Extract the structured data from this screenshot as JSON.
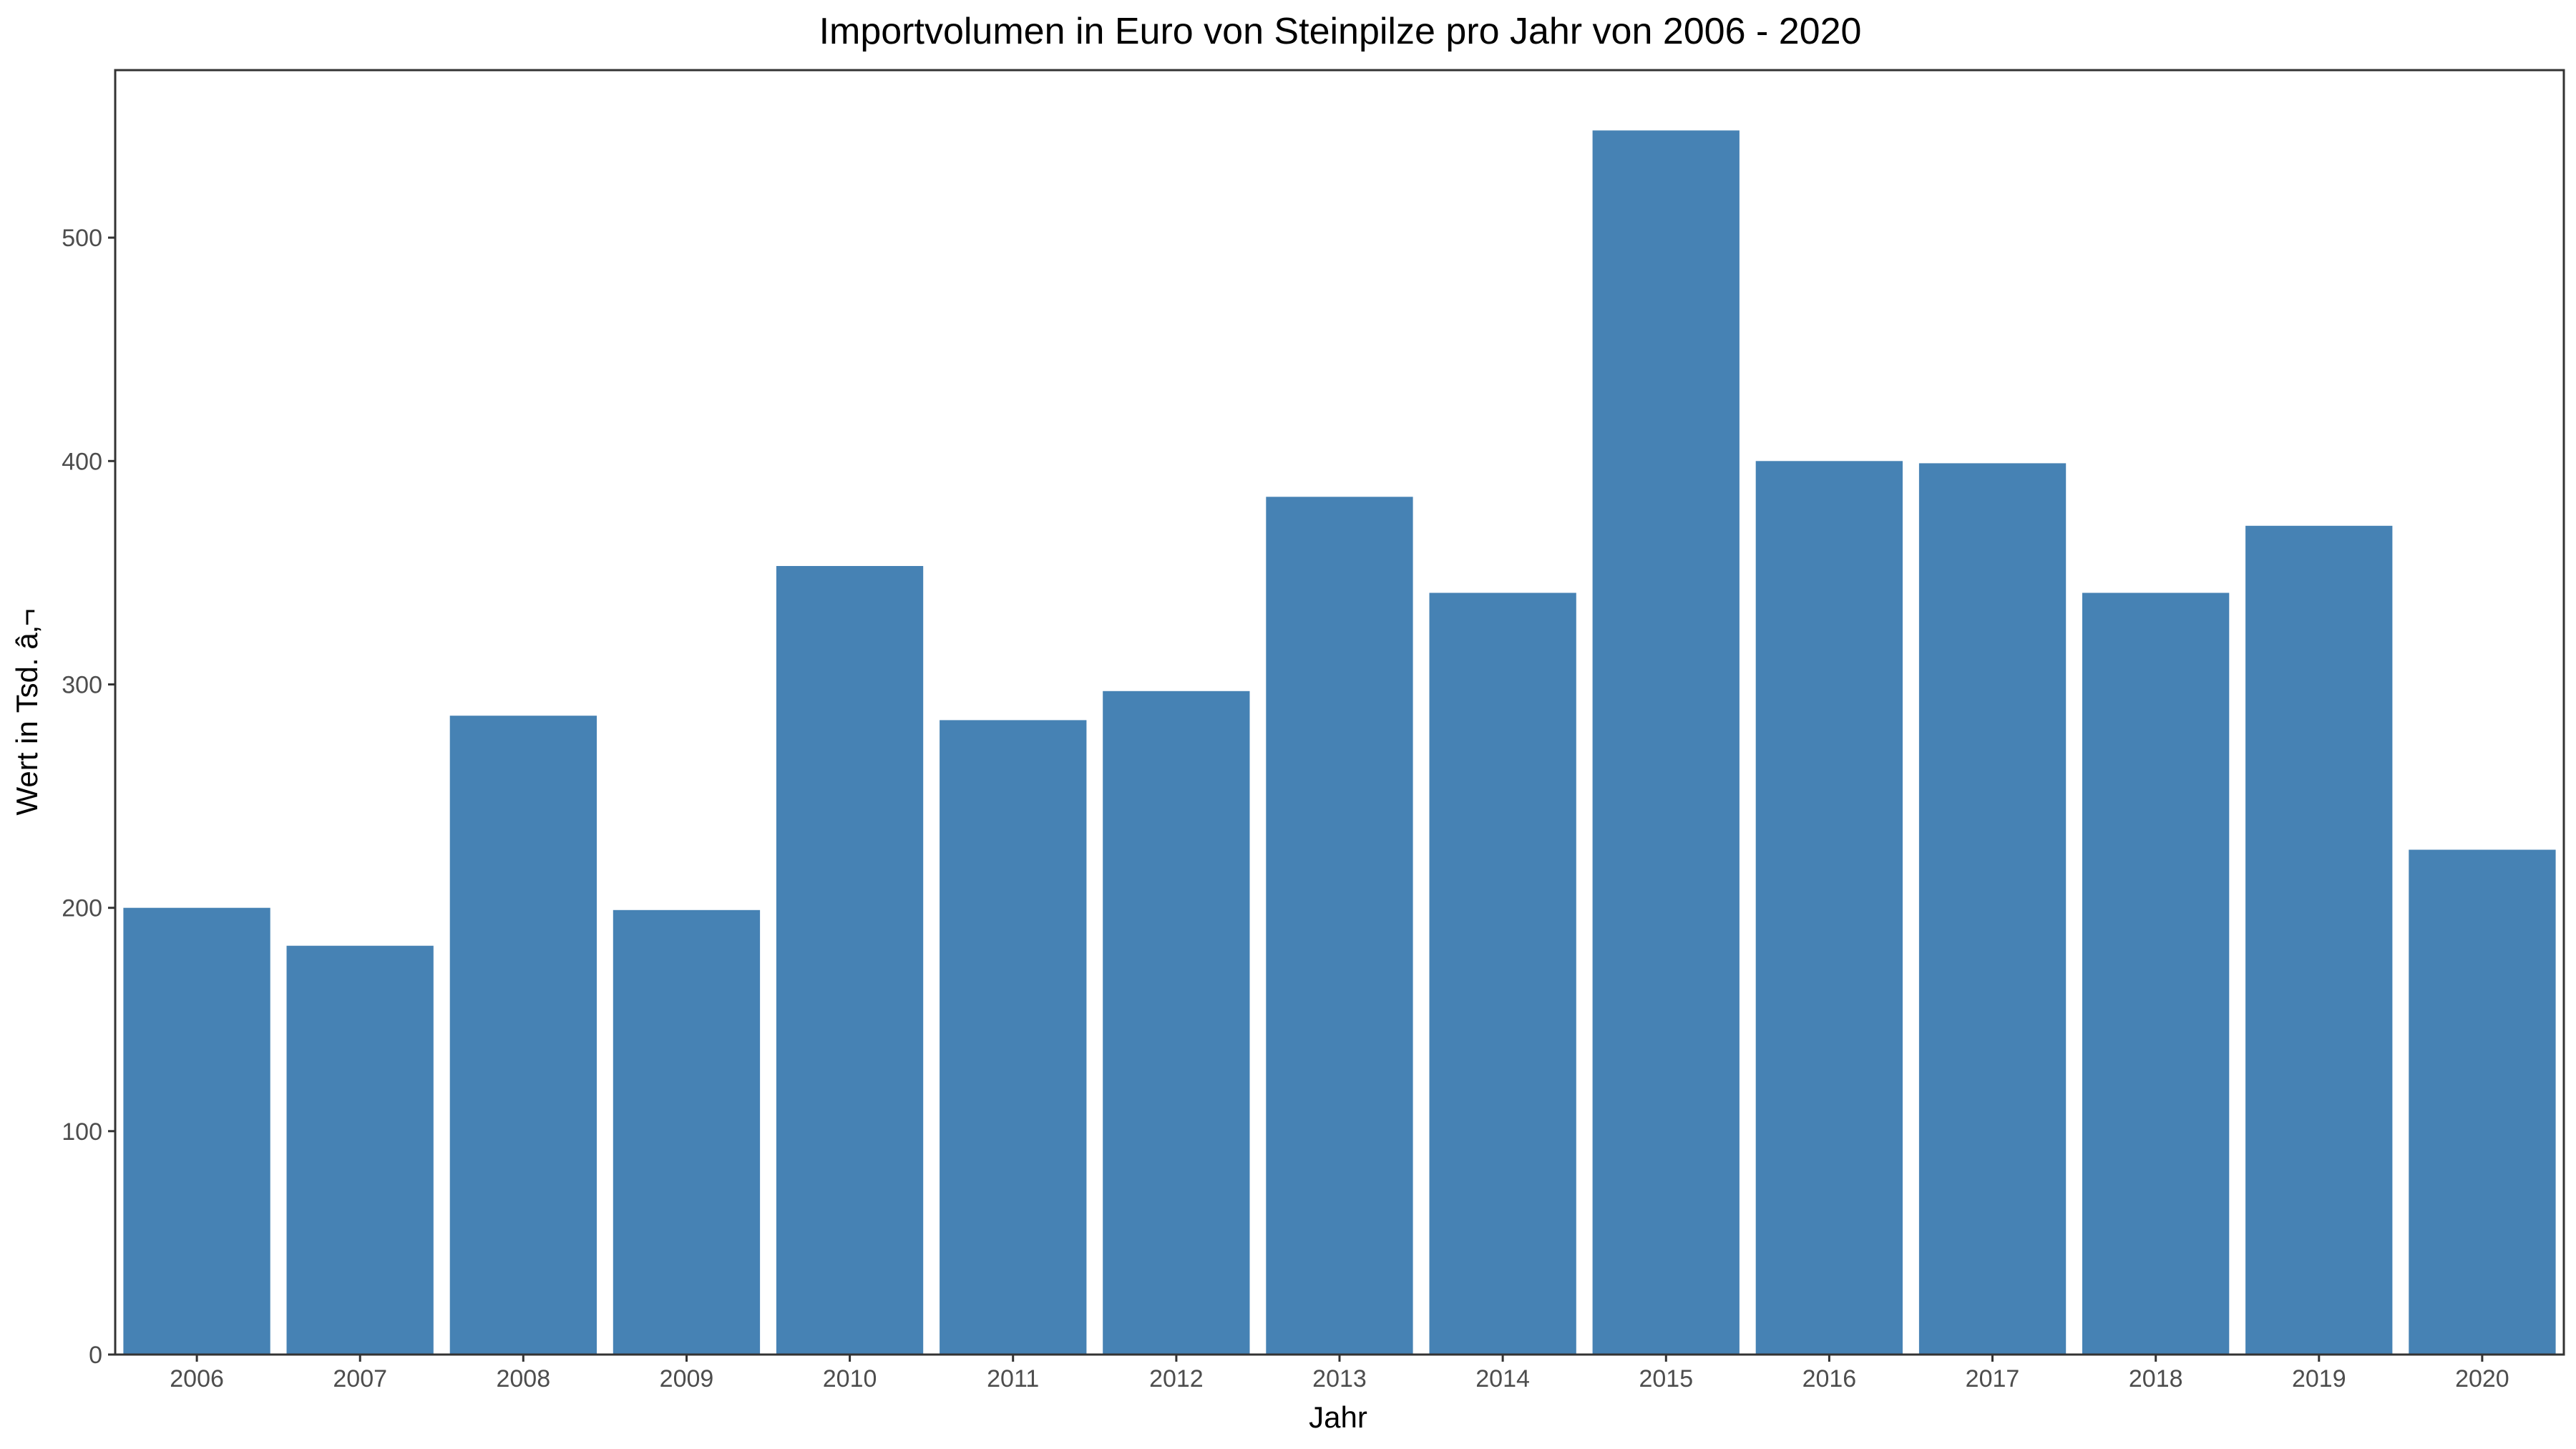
{
  "chart_data": {
    "type": "bar",
    "title": "Importvolumen in Euro von Steinpilze pro Jahr von 2006 - 2020",
    "xlabel": "Jahr",
    "ylabel": "Wert in Tsd. â‚¬",
    "categories": [
      "2006",
      "2007",
      "2008",
      "2009",
      "2010",
      "2011",
      "2012",
      "2013",
      "2014",
      "2015",
      "2016",
      "2017",
      "2018",
      "2019",
      "2020"
    ],
    "values": [
      200,
      183,
      286,
      199,
      353,
      284,
      297,
      384,
      341,
      548,
      400,
      399,
      341,
      371,
      226
    ],
    "ylim": [
      0,
      575
    ],
    "yticks": [
      0,
      100,
      200,
      300,
      400,
      500
    ],
    "ytick_labels": [
      "0",
      "100",
      "200",
      "300",
      "400",
      "500"
    ],
    "grid": false,
    "legend": "none",
    "bar_color": "#4682b4",
    "panel_border_color": "#333333"
  }
}
